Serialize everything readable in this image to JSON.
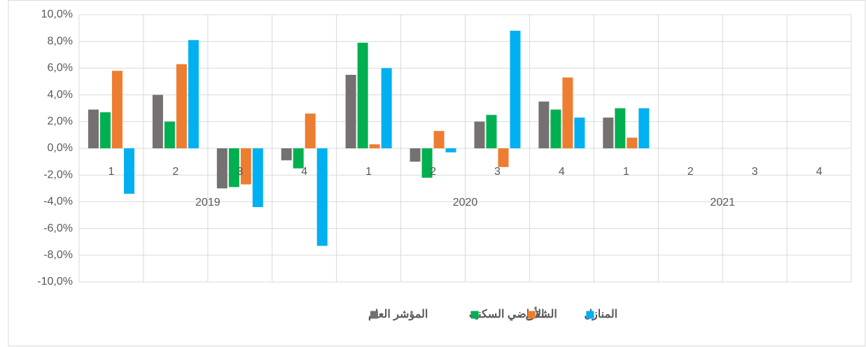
{
  "chart_data": {
    "type": "bar",
    "categories": [
      "1",
      "2",
      "3",
      "4",
      "1",
      "2",
      "3",
      "4",
      "1",
      "2",
      "3",
      "4"
    ],
    "category_groups": [
      {
        "label": "2019",
        "size": 4
      },
      {
        "label": "2020",
        "size": 4
      },
      {
        "label": "2021",
        "size": 4
      }
    ],
    "series": [
      {
        "name": "المؤشر العام",
        "color": "#767171",
        "values": [
          2.9,
          4.0,
          -3.0,
          -0.9,
          5.5,
          -1.0,
          2.0,
          3.5,
          2.3,
          null,
          null,
          null
        ]
      },
      {
        "name": "الأراضي السكنية",
        "color": "#00b050",
        "values": [
          2.7,
          2.0,
          -2.9,
          -1.5,
          7.9,
          -2.2,
          2.5,
          2.9,
          3.0,
          null,
          null,
          null
        ]
      },
      {
        "name": "الشقق",
        "color": "#ed7d31",
        "values": [
          5.8,
          6.3,
          -2.7,
          2.6,
          0.3,
          1.3,
          -1.4,
          5.3,
          0.8,
          null,
          null,
          null
        ]
      },
      {
        "name": "المنازل",
        "color": "#00b0f0",
        "values": [
          -3.4,
          8.1,
          -4.4,
          -7.3,
          6.0,
          -0.3,
          8.8,
          2.3,
          3.0,
          null,
          null,
          null
        ]
      }
    ],
    "ylim": [
      -10,
      10
    ],
    "yticks": [
      {
        "value": -10,
        "label": "-10,0%"
      },
      {
        "value": -8,
        "label": "-8,0%"
      },
      {
        "value": -6,
        "label": "-6,0%"
      },
      {
        "value": -4,
        "label": "-4,0%"
      },
      {
        "value": -2,
        "label": "-2,0%"
      },
      {
        "value": 0,
        "label": "0,0%"
      },
      {
        "value": 2,
        "label": "2,0%"
      },
      {
        "value": 4,
        "label": "4,0%"
      },
      {
        "value": 6,
        "label": "6,0%"
      },
      {
        "value": 8,
        "label": "8,0%"
      },
      {
        "value": 10,
        "label": "10,0%"
      }
    ],
    "grid": true,
    "legend": "bottom"
  }
}
